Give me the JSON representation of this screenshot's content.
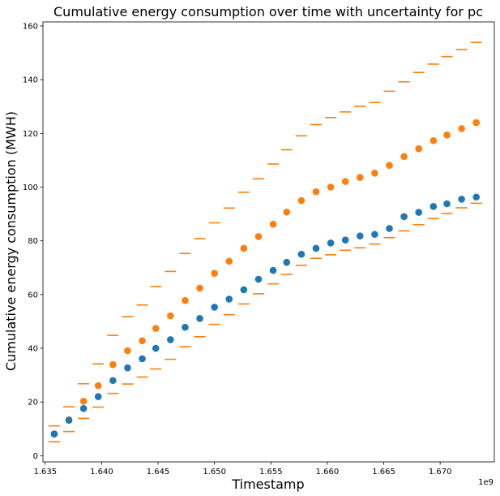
{
  "chart_data": {
    "type": "scatter",
    "title": "Cumulative energy consumption over time with uncertainty for pc",
    "xlabel": "Timestamp",
    "ylabel": "Cumulative energy consumption (MWH)",
    "x_offset_label": "1e9",
    "xlim": [
      1.6348,
      1.6748
    ],
    "ylim": [
      -2.3,
      161.5
    ],
    "x_ticks": [
      1.635,
      1.64,
      1.645,
      1.65,
      1.655,
      1.66,
      1.665,
      1.67
    ],
    "x_tick_labels": [
      "1.635",
      "1.640",
      "1.645",
      "1.650",
      "1.655",
      "1.660",
      "1.665",
      "1.670"
    ],
    "y_ticks": [
      0,
      20,
      40,
      60,
      80,
      100,
      120,
      140,
      160
    ],
    "y_tick_labels": [
      "0",
      "20",
      "40",
      "60",
      "80",
      "100",
      "120",
      "140",
      "160"
    ],
    "grid": false,
    "x": [
      1.6358,
      1.6371,
      1.6384,
      1.6397,
      1.641,
      1.6423,
      1.6436,
      1.6448,
      1.6461,
      1.6474,
      1.6487,
      1.65,
      1.6513,
      1.6526,
      1.6539,
      1.6552,
      1.6564,
      1.6577,
      1.659,
      1.6603,
      1.6616,
      1.6629,
      1.6642,
      1.6655,
      1.6668,
      1.6681,
      1.6694,
      1.6706,
      1.6719,
      1.6732
    ],
    "series": [
      {
        "color": "#1f77b4",
        "marker": "circle",
        "values": [
          8.1,
          13.2,
          17.6,
          22.0,
          28.0,
          32.7,
          36.1,
          40.0,
          43.2,
          47.8,
          51.1,
          55.3,
          58.3,
          61.8,
          65.7,
          69.0,
          72.0,
          75.0,
          77.2,
          79.2,
          80.3,
          81.8,
          82.4,
          84.6,
          89.0,
          90.6,
          92.8,
          93.8,
          95.5,
          96.3
        ]
      },
      {
        "color": "#ff7f0e",
        "marker": "circle",
        "values": [
          8.1,
          13.4,
          20.3,
          26.1,
          33.9,
          39.1,
          42.8,
          47.4,
          52.1,
          57.8,
          62.4,
          67.9,
          72.4,
          77.2,
          81.6,
          86.2,
          90.7,
          95.0,
          98.3,
          100.0,
          102.1,
          103.6,
          105.2,
          108.1,
          111.4,
          114.3,
          117.3,
          119.4,
          121.8,
          124.0
        ]
      },
      {
        "color": "#ff7f0e",
        "marker": "hline",
        "values": [
          11.1,
          18.2,
          26.8,
          34.2,
          44.8,
          51.8,
          56.1,
          63.0,
          68.6,
          75.3,
          80.8,
          86.7,
          92.2,
          98.1,
          103.1,
          108.6,
          113.9,
          119.1,
          123.3,
          125.9,
          128.0,
          130.1,
          131.5,
          135.7,
          139.2,
          142.7,
          145.8,
          148.6,
          151.2,
          153.9
        ]
      },
      {
        "color": "#ff7f0e",
        "marker": "hline",
        "values": [
          5.2,
          9.0,
          13.9,
          18.1,
          23.2,
          26.7,
          29.3,
          32.3,
          35.9,
          40.6,
          44.3,
          48.9,
          52.5,
          56.5,
          60.3,
          64.0,
          67.5,
          70.9,
          73.5,
          74.8,
          76.5,
          77.4,
          78.8,
          81.2,
          83.7,
          86.0,
          88.3,
          90.2,
          92.3,
          94.0
        ]
      }
    ]
  }
}
